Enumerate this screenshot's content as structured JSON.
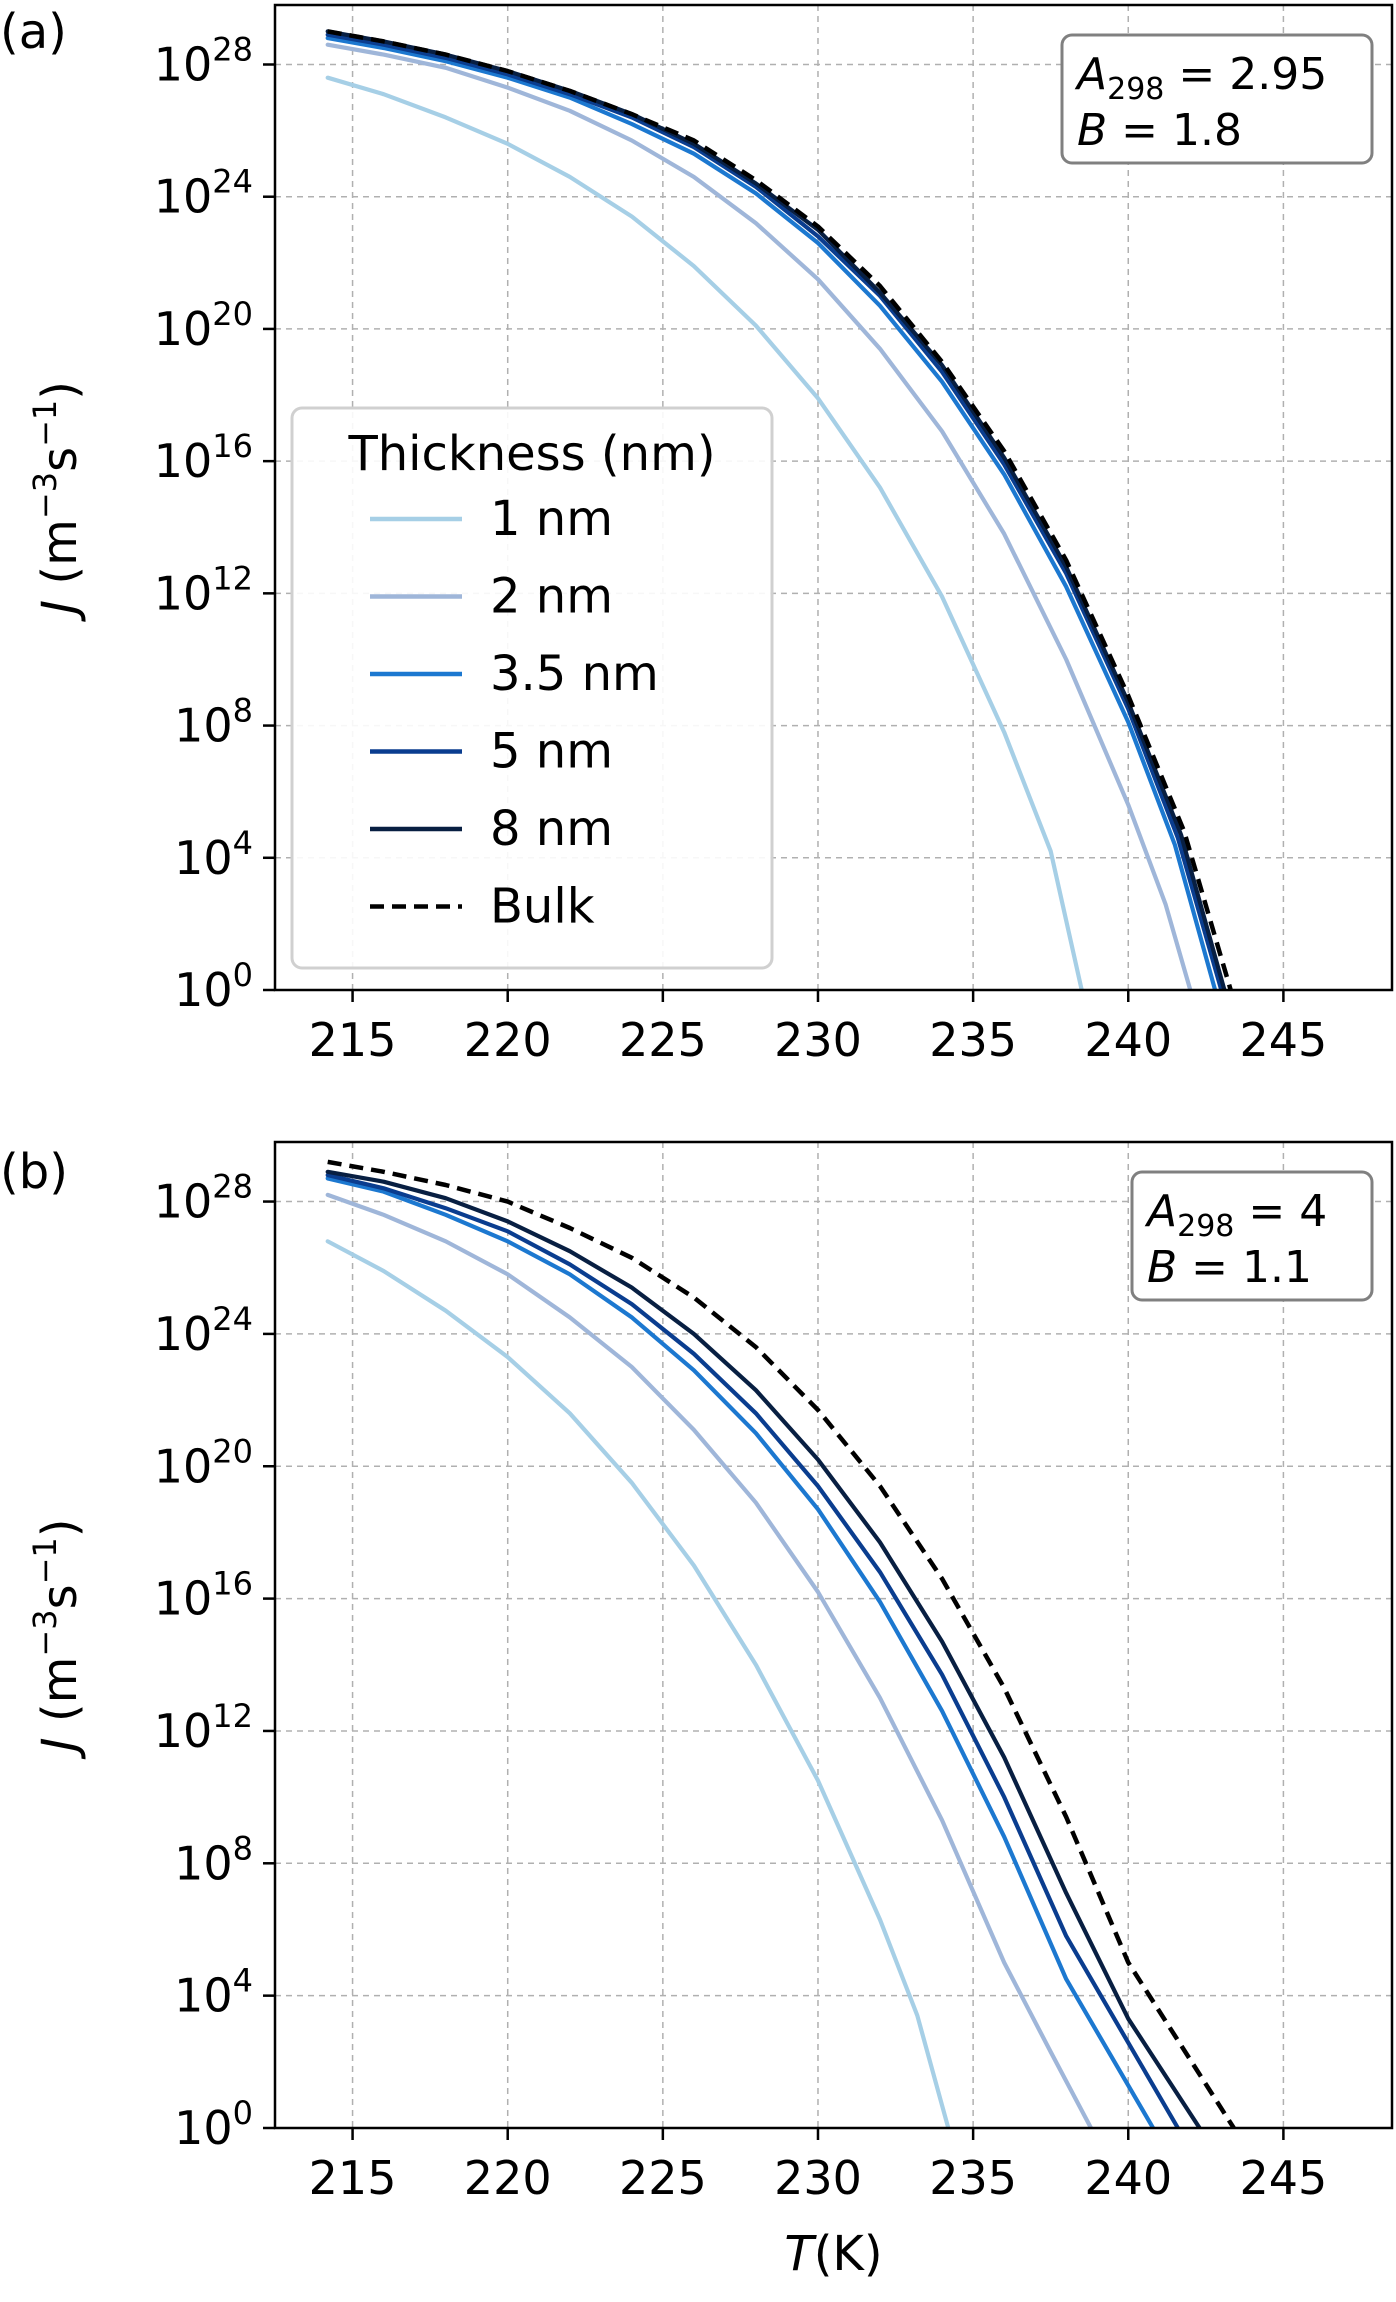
{
  "chart_data": [
    {
      "type": "line",
      "panel_label": "(a)",
      "xlabel": "",
      "ylabel_italic": "J",
      "ylabel_rest": " (m",
      "ylabel_exp1": "−3",
      "ylabel_mid": "s",
      "ylabel_exp2": "−1",
      "ylabel_end": ")",
      "xlim": [
        212.5,
        248.5
      ],
      "ylim_log10": [
        0,
        29.8
      ],
      "x_scale": "linear",
      "y_scale": "log",
      "grid": true,
      "x_ticks": [
        215,
        220,
        225,
        230,
        235,
        240,
        245
      ],
      "y_ticks": [
        {
          "base": "10",
          "exp": "0",
          "value": 0
        },
        {
          "base": "10",
          "exp": "4",
          "value": 4
        },
        {
          "base": "10",
          "exp": "8",
          "value": 8
        },
        {
          "base": "10",
          "exp": "12",
          "value": 12
        },
        {
          "base": "10",
          "exp": "16",
          "value": 16
        },
        {
          "base": "10",
          "exp": "20",
          "value": 20
        },
        {
          "base": "10",
          "exp": "24",
          "value": 24
        },
        {
          "base": "10",
          "exp": "28",
          "value": 28
        }
      ],
      "params_box": {
        "line1_sym": "A",
        "line1_sub": "298",
        "line1_val": " = 2.95",
        "line2_sym": "B",
        "line2_val": " = 1.8",
        "placement": "top-right"
      },
      "legend": {
        "title": "Thickness (nm)",
        "placement": "center-left"
      },
      "series": [
        {
          "name": "1 nm",
          "color": "#a6cfe6",
          "dash": false,
          "points": [
            [
              214.2,
              27.6
            ],
            [
              216,
              27.1
            ],
            [
              218,
              26.4
            ],
            [
              220,
              25.6
            ],
            [
              222,
              24.6
            ],
            [
              224,
              23.4
            ],
            [
              226,
              21.9
            ],
            [
              228,
              20.1
            ],
            [
              230,
              17.9
            ],
            [
              232,
              15.2
            ],
            [
              234,
              11.9
            ],
            [
              236,
              7.8
            ],
            [
              237.5,
              4.2
            ],
            [
              238.5,
              0
            ]
          ]
        },
        {
          "name": "2 nm",
          "color": "#9fb6d9",
          "dash": false,
          "points": [
            [
              214.2,
              28.6
            ],
            [
              216,
              28.3
            ],
            [
              218,
              27.9
            ],
            [
              220,
              27.3
            ],
            [
              222,
              26.6
            ],
            [
              224,
              25.7
            ],
            [
              226,
              24.6
            ],
            [
              228,
              23.2
            ],
            [
              230,
              21.5
            ],
            [
              232,
              19.4
            ],
            [
              234,
              16.9
            ],
            [
              236,
              13.8
            ],
            [
              238,
              10.0
            ],
            [
              240,
              5.6
            ],
            [
              241.2,
              2.6
            ],
            [
              242,
              0
            ]
          ]
        },
        {
          "name": "3.5 nm",
          "color": "#1c78d0",
          "dash": false,
          "points": [
            [
              214.2,
              28.8
            ],
            [
              216,
              28.5
            ],
            [
              218,
              28.1
            ],
            [
              220,
              27.6
            ],
            [
              222,
              27.0
            ],
            [
              224,
              26.2
            ],
            [
              226,
              25.3
            ],
            [
              228,
              24.1
            ],
            [
              230,
              22.6
            ],
            [
              232,
              20.7
            ],
            [
              234,
              18.4
            ],
            [
              236,
              15.6
            ],
            [
              238,
              12.2
            ],
            [
              240,
              8.1
            ],
            [
              241.5,
              4.4
            ],
            [
              242.8,
              0
            ]
          ]
        },
        {
          "name": "5 nm",
          "color": "#0a3d8f",
          "dash": false,
          "points": [
            [
              214.2,
              28.9
            ],
            [
              216,
              28.6
            ],
            [
              218,
              28.2
            ],
            [
              220,
              27.7
            ],
            [
              222,
              27.1
            ],
            [
              224,
              26.4
            ],
            [
              226,
              25.5
            ],
            [
              228,
              24.3
            ],
            [
              230,
              22.8
            ],
            [
              232,
              21.0
            ],
            [
              234,
              18.7
            ],
            [
              236,
              15.9
            ],
            [
              238,
              12.6
            ],
            [
              240,
              8.5
            ],
            [
              241.6,
              4.6
            ],
            [
              243,
              0
            ]
          ]
        },
        {
          "name": "8 nm",
          "color": "#081f42",
          "dash": false,
          "points": [
            [
              214.2,
              29.0
            ],
            [
              216,
              28.7
            ],
            [
              218,
              28.3
            ],
            [
              220,
              27.8
            ],
            [
              222,
              27.2
            ],
            [
              224,
              26.5
            ],
            [
              226,
              25.6
            ],
            [
              228,
              24.4
            ],
            [
              230,
              23.0
            ],
            [
              232,
              21.1
            ],
            [
              234,
              18.9
            ],
            [
              236,
              16.1
            ],
            [
              238,
              12.8
            ],
            [
              240,
              8.7
            ],
            [
              241.7,
              4.7
            ],
            [
              243.1,
              0
            ]
          ]
        },
        {
          "name": "Bulk",
          "color": "#000000",
          "dash": true,
          "points": [
            [
              214.2,
              29.0
            ],
            [
              216,
              28.7
            ],
            [
              218,
              28.3
            ],
            [
              220,
              27.8
            ],
            [
              222,
              27.2
            ],
            [
              224,
              26.5
            ],
            [
              226,
              25.7
            ],
            [
              228,
              24.5
            ],
            [
              230,
              23.1
            ],
            [
              232,
              21.3
            ],
            [
              234,
              19.0
            ],
            [
              236,
              16.3
            ],
            [
              238,
              13.0
            ],
            [
              240,
              8.9
            ],
            [
              241.8,
              4.8
            ],
            [
              243.3,
              0
            ]
          ]
        }
      ]
    },
    {
      "type": "line",
      "panel_label": "(b)",
      "xlabel_italic": "T",
      "xlabel_rest": "(K)",
      "ylabel_italic": "J",
      "ylabel_rest": " (m",
      "ylabel_exp1": "−3",
      "ylabel_mid": "s",
      "ylabel_exp2": "−1",
      "ylabel_end": ")",
      "xlim": [
        212.5,
        248.5
      ],
      "ylim_log10": [
        0,
        29.8
      ],
      "x_scale": "linear",
      "y_scale": "log",
      "grid": true,
      "x_ticks": [
        215,
        220,
        225,
        230,
        235,
        240,
        245
      ],
      "y_ticks": [
        {
          "base": "10",
          "exp": "0",
          "value": 0
        },
        {
          "base": "10",
          "exp": "4",
          "value": 4
        },
        {
          "base": "10",
          "exp": "8",
          "value": 8
        },
        {
          "base": "10",
          "exp": "12",
          "value": 12
        },
        {
          "base": "10",
          "exp": "16",
          "value": 16
        },
        {
          "base": "10",
          "exp": "20",
          "value": 20
        },
        {
          "base": "10",
          "exp": "24",
          "value": 24
        },
        {
          "base": "10",
          "exp": "28",
          "value": 28
        }
      ],
      "params_box": {
        "line1_sym": "A",
        "line1_sub": "298",
        "line1_val": " = 4",
        "line2_sym": "B",
        "line2_val": " = 1.1",
        "placement": "top-right"
      },
      "series": [
        {
          "name": "1 nm",
          "color": "#a6cfe6",
          "dash": false,
          "points": [
            [
              214.2,
              26.8
            ],
            [
              216,
              25.9
            ],
            [
              218,
              24.7
            ],
            [
              220,
              23.3
            ],
            [
              222,
              21.6
            ],
            [
              224,
              19.5
            ],
            [
              226,
              17.0
            ],
            [
              228,
              14.0
            ],
            [
              230,
              10.5
            ],
            [
              232,
              6.3
            ],
            [
              233.2,
              3.4
            ],
            [
              234.2,
              0
            ]
          ]
        },
        {
          "name": "2 nm",
          "color": "#9fb6d9",
          "dash": false,
          "points": [
            [
              214.2,
              28.2
            ],
            [
              216,
              27.6
            ],
            [
              218,
              26.8
            ],
            [
              220,
              25.8
            ],
            [
              222,
              24.5
            ],
            [
              224,
              23.0
            ],
            [
              226,
              21.1
            ],
            [
              228,
              18.9
            ],
            [
              230,
              16.2
            ],
            [
              232,
              13.0
            ],
            [
              234,
              9.3
            ],
            [
              236,
              5.0
            ],
            [
              237.5,
              2.3
            ],
            [
              238.8,
              0
            ]
          ]
        },
        {
          "name": "3.5 nm",
          "color": "#1c78d0",
          "dash": false,
          "points": [
            [
              214.2,
              28.7
            ],
            [
              216,
              28.3
            ],
            [
              218,
              27.6
            ],
            [
              220,
              26.8
            ],
            [
              222,
              25.8
            ],
            [
              224,
              24.5
            ],
            [
              226,
              22.9
            ],
            [
              228,
              21.0
            ],
            [
              230,
              18.7
            ],
            [
              232,
              15.9
            ],
            [
              234,
              12.6
            ],
            [
              236,
              8.8
            ],
            [
              238,
              4.5
            ],
            [
              240.8,
              0
            ]
          ]
        },
        {
          "name": "5 nm",
          "color": "#0a3d8f",
          "dash": false,
          "points": [
            [
              214.2,
              28.8
            ],
            [
              216,
              28.4
            ],
            [
              218,
              27.8
            ],
            [
              220,
              27.1
            ],
            [
              222,
              26.1
            ],
            [
              224,
              24.9
            ],
            [
              226,
              23.4
            ],
            [
              228,
              21.6
            ],
            [
              230,
              19.4
            ],
            [
              232,
              16.8
            ],
            [
              234,
              13.7
            ],
            [
              236,
              10.0
            ],
            [
              238,
              5.8
            ],
            [
              241.6,
              0
            ]
          ]
        },
        {
          "name": "8 nm",
          "color": "#081f42",
          "dash": false,
          "points": [
            [
              214.2,
              28.9
            ],
            [
              216,
              28.6
            ],
            [
              218,
              28.1
            ],
            [
              220,
              27.4
            ],
            [
              222,
              26.5
            ],
            [
              224,
              25.4
            ],
            [
              226,
              24.0
            ],
            [
              228,
              22.3
            ],
            [
              230,
              20.2
            ],
            [
              232,
              17.7
            ],
            [
              234,
              14.7
            ],
            [
              236,
              11.2
            ],
            [
              238,
              7.1
            ],
            [
              240,
              3.3
            ],
            [
              242.3,
              0
            ]
          ]
        },
        {
          "name": "Bulk",
          "color": "#000000",
          "dash": true,
          "points": [
            [
              214.2,
              29.2
            ],
            [
              216,
              28.9
            ],
            [
              218,
              28.5
            ],
            [
              220,
              28.0
            ],
            [
              222,
              27.2
            ],
            [
              224,
              26.3
            ],
            [
              226,
              25.1
            ],
            [
              228,
              23.6
            ],
            [
              230,
              21.7
            ],
            [
              232,
              19.4
            ],
            [
              234,
              16.6
            ],
            [
              236,
              13.3
            ],
            [
              238,
              9.4
            ],
            [
              240,
              5.0
            ],
            [
              243.4,
              0
            ]
          ]
        }
      ]
    }
  ]
}
